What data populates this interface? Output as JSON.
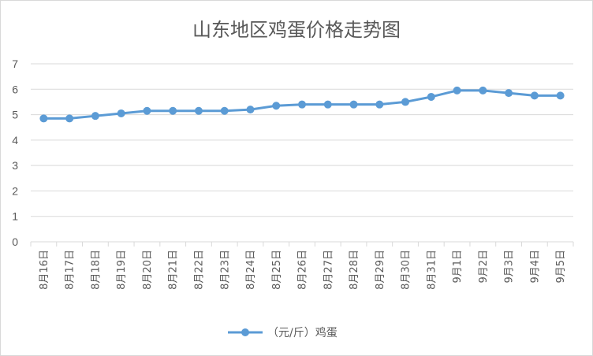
{
  "chart_data": {
    "type": "line",
    "title": "山东地区鸡蛋价格走势图",
    "xlabel": "",
    "ylabel": "",
    "ylim": [
      0,
      7
    ],
    "yticks": [
      0,
      1,
      2,
      3,
      4,
      5,
      6,
      7
    ],
    "grid": true,
    "legend_position": "bottom",
    "categories": [
      "8月16日",
      "8月17日",
      "8月18日",
      "8月19日",
      "8月20日",
      "8月21日",
      "8月22日",
      "8月23日",
      "8月24日",
      "8月25日",
      "8月26日",
      "8月27日",
      "8月28日",
      "8月29日",
      "8月30日",
      "8月31日",
      "9月1日",
      "9月2日",
      "9月3日",
      "9月4日",
      "9月5日"
    ],
    "series": [
      {
        "name": "（元/斤）鸡蛋",
        "color": "#5b9bd5",
        "values": [
          4.85,
          4.85,
          4.95,
          5.05,
          5.15,
          5.15,
          5.15,
          5.15,
          5.2,
          5.35,
          5.4,
          5.4,
          5.4,
          5.4,
          5.5,
          5.7,
          5.95,
          5.95,
          5.85,
          5.75,
          5.75
        ]
      }
    ]
  }
}
